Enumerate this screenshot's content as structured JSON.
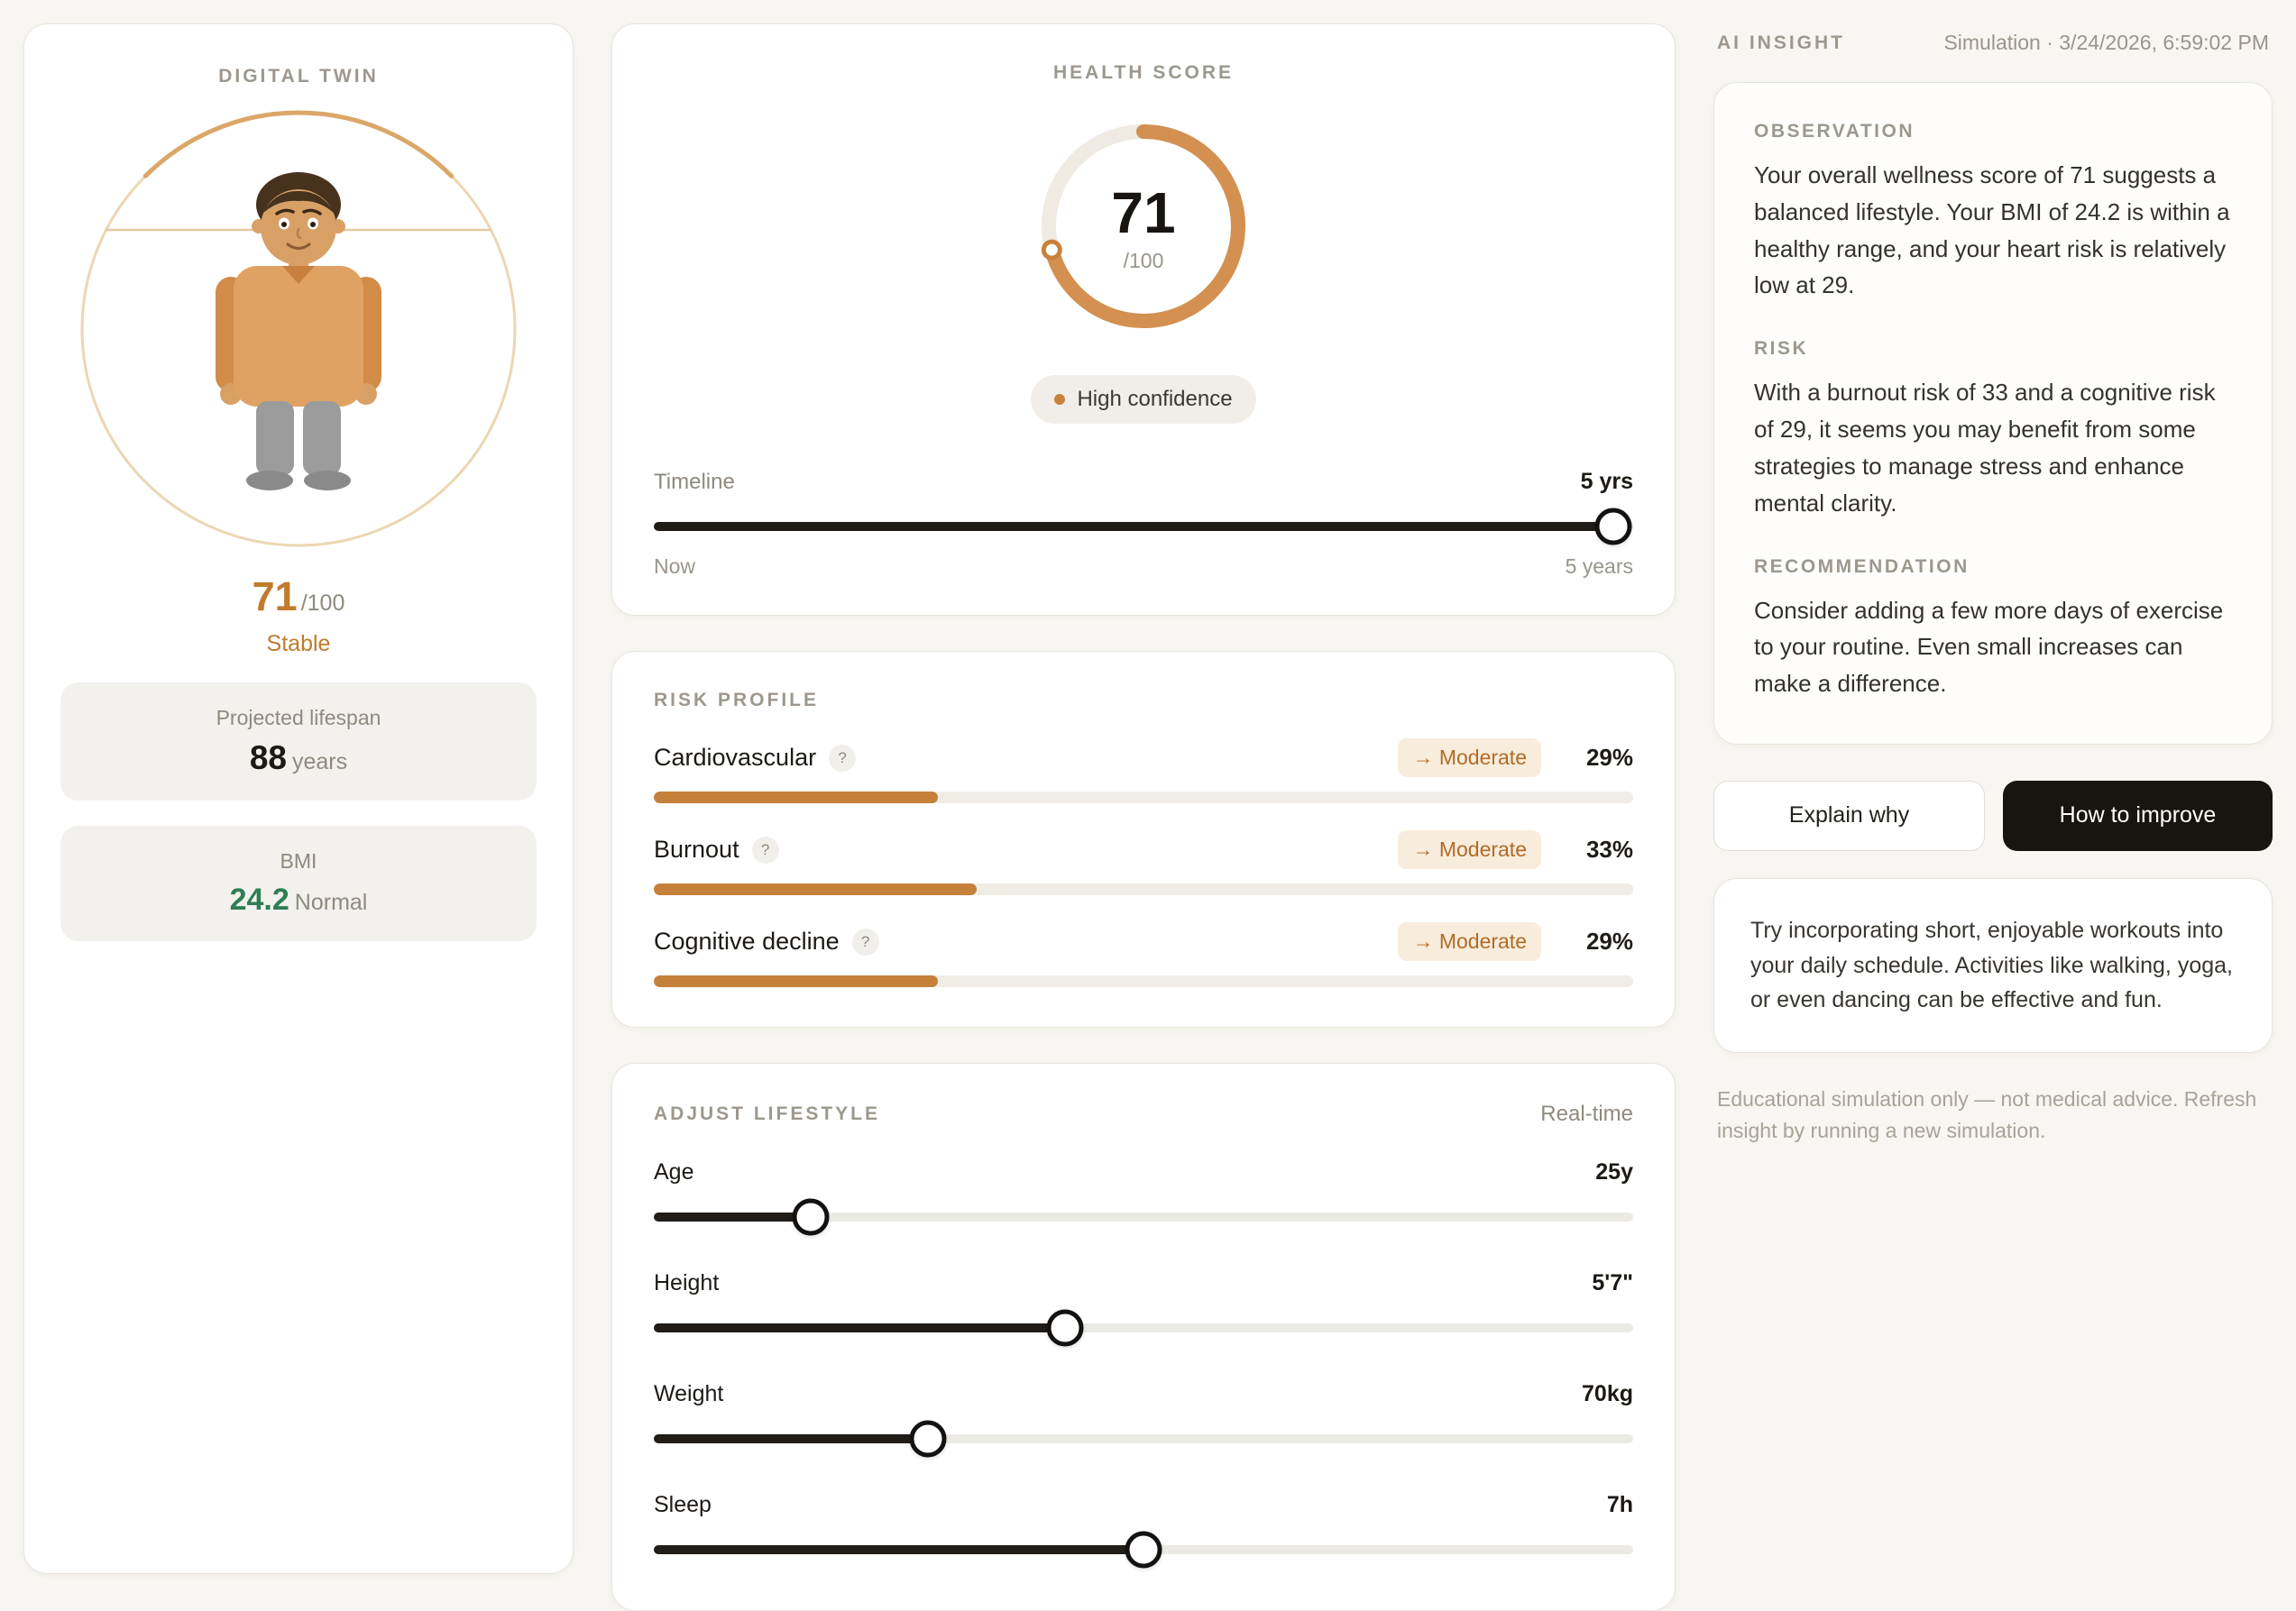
{
  "colors": {
    "accent_orange": "#c5813a",
    "score_orange": "#c07b2c",
    "bmi_green": "#2f7d54",
    "dark_button": "#18140f",
    "background": "#f8f6f2"
  },
  "digital_twin": {
    "title": "DIGITAL TWIN",
    "score": "71",
    "score_max": "/100",
    "status": "Stable",
    "lifespan_label": "Projected lifespan",
    "lifespan_value": "88",
    "lifespan_unit": "years",
    "bmi_label": "BMI",
    "bmi_value": "24.2",
    "bmi_status": "Normal"
  },
  "health_score": {
    "title": "HEALTH SCORE",
    "score": "71",
    "score_max": "/100",
    "percent": 71,
    "confidence": "High confidence",
    "timeline_label": "Timeline",
    "timeline_value": "5 yrs",
    "timeline_percent": 98,
    "timeline_min": "Now",
    "timeline_max": "5 years"
  },
  "risk_profile": {
    "title": "RISK PROFILE",
    "help_icon": "?",
    "rows": [
      {
        "label": "Cardiovascular",
        "trend": "→ Moderate",
        "value": "29%",
        "percent": 29
      },
      {
        "label": "Burnout",
        "trend": "→ Moderate",
        "value": "33%",
        "percent": 33
      },
      {
        "label": "Cognitive decline",
        "trend": "→ Moderate",
        "value": "29%",
        "percent": 29
      }
    ]
  },
  "adjust": {
    "title": "ADJUST LIFESTYLE",
    "badge": "Real-time",
    "sliders": [
      {
        "label": "Age",
        "value": "25y",
        "percent": 16
      },
      {
        "label": "Height",
        "value": "5'7\"",
        "percent": 42
      },
      {
        "label": "Weight",
        "value": "70kg",
        "percent": 28
      },
      {
        "label": "Sleep",
        "value": "7h",
        "percent": 50
      }
    ]
  },
  "insight": {
    "title": "AI INSIGHT",
    "timestamp": "Simulation · 3/24/2026, 6:59:02 PM",
    "sections": [
      {
        "heading": "OBSERVATION",
        "body": "Your overall wellness score of 71 suggests a balanced lifestyle. Your BMI of 24.2 is within a healthy range, and your heart risk is relatively low at 29."
      },
      {
        "heading": "RISK",
        "body": "With a burnout risk of 33 and a cognitive risk of 29, it seems you may benefit from some strategies to manage stress and enhance mental clarity."
      },
      {
        "heading": "RECOMMENDATION",
        "body": "Consider adding a few more days of exercise to your routine. Even small increases can make a difference."
      }
    ],
    "explain_button": "Explain why",
    "improve_button": "How to improve",
    "tip": "Try incorporating short, enjoyable workouts into your daily schedule. Activities like walking, yoga, or even dancing can be effective and fun.",
    "disclaimer": "Educational simulation only — not medical advice. Refresh insight by running a new simulation."
  }
}
